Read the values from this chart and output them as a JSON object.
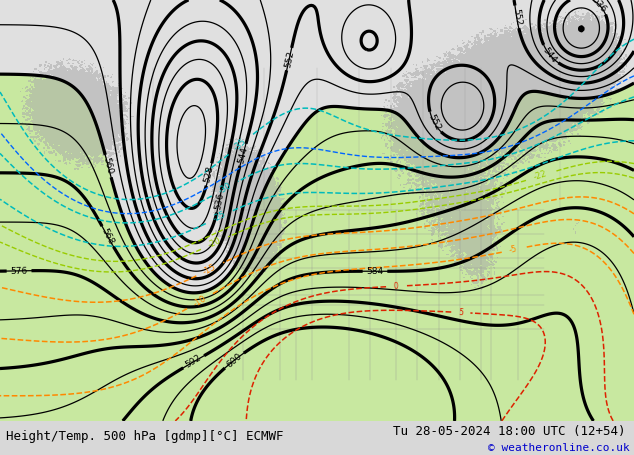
{
  "title_left": "Height/Temp. 500 hPa [gdmp][°C] ECMWF",
  "title_right": "Tu 28-05-2024 18:00 UTC (12+54)",
  "copyright": "© weatheronline.co.uk",
  "bg_color": "#d8d8d8",
  "map_bg": "#e0e0e0",
  "green_fill": "#c8e8a0",
  "gray_fill": "#aaaaaa",
  "z500_color": "#000000",
  "temp_cyan_color": "#00bbbb",
  "temp_orange_color": "#ff8800",
  "temp_red_color": "#dd2200",
  "temp_green_color": "#99cc00",
  "temp_blue_color": "#0066ff",
  "font_size_bottom": 9,
  "font_size_labels": 7
}
